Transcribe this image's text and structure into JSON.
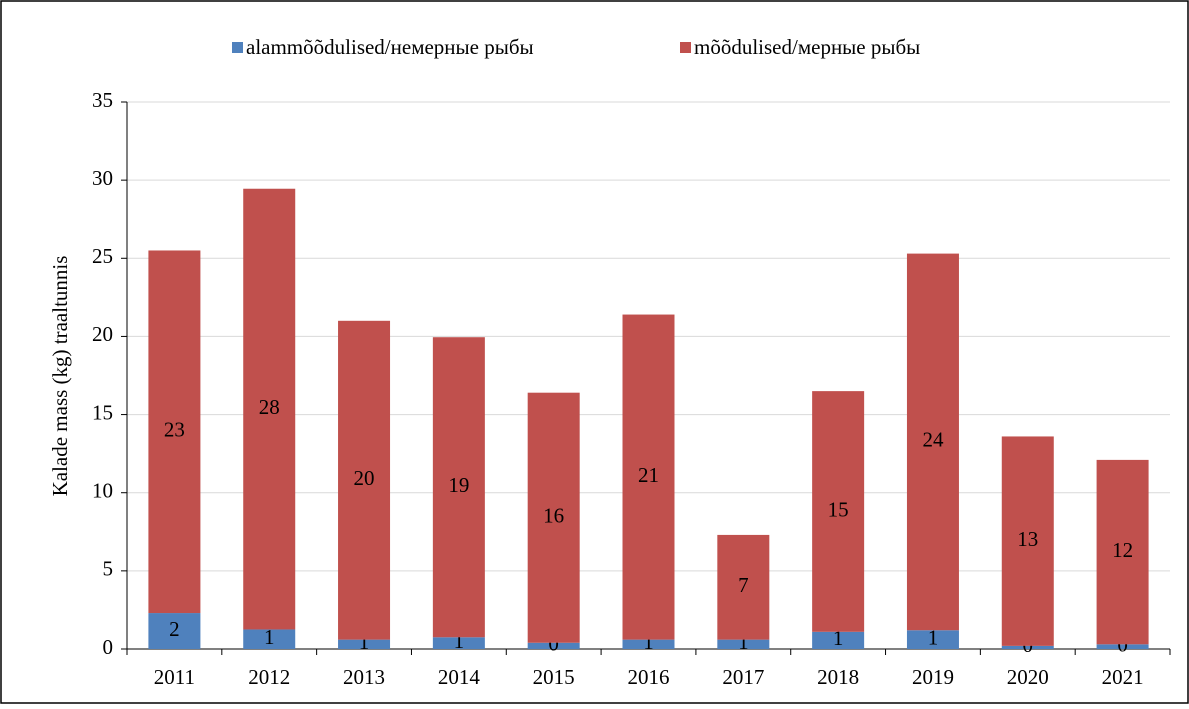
{
  "chart_data": {
    "type": "stacked_bar",
    "ylabel": "Kalade mass (kg) traaltunnis",
    "categories": [
      "2011",
      "2012",
      "2013",
      "2014",
      "2015",
      "2016",
      "2017",
      "2018",
      "2019",
      "2020",
      "2021"
    ],
    "series": [
      {
        "name": "alammõõdulised/немерные рыбы",
        "color": "#4f81bd",
        "values": [
          2.3,
          1.25,
          0.6,
          0.75,
          0.4,
          0.6,
          0.6,
          1.1,
          1.2,
          0.2,
          0.3
        ],
        "value_labels": [
          "2",
          "1",
          "1",
          "1",
          "0",
          "1",
          "1",
          "1",
          "1",
          "0",
          "0"
        ]
      },
      {
        "name": "mõõdulised/мерные рыбы",
        "color": "#c0504d",
        "values": [
          23.2,
          28.2,
          20.4,
          19.2,
          16.0,
          20.8,
          6.7,
          15.4,
          24.1,
          13.4,
          11.8
        ],
        "value_labels": [
          "23",
          "28",
          "20",
          "19",
          "16",
          "21",
          "7",
          "15",
          "24",
          "13",
          "12"
        ]
      }
    ],
    "ylim": [
      0,
      35
    ],
    "yticks": [
      0,
      5,
      10,
      15,
      20,
      25,
      30,
      35
    ],
    "grid": true,
    "legend": "top"
  }
}
